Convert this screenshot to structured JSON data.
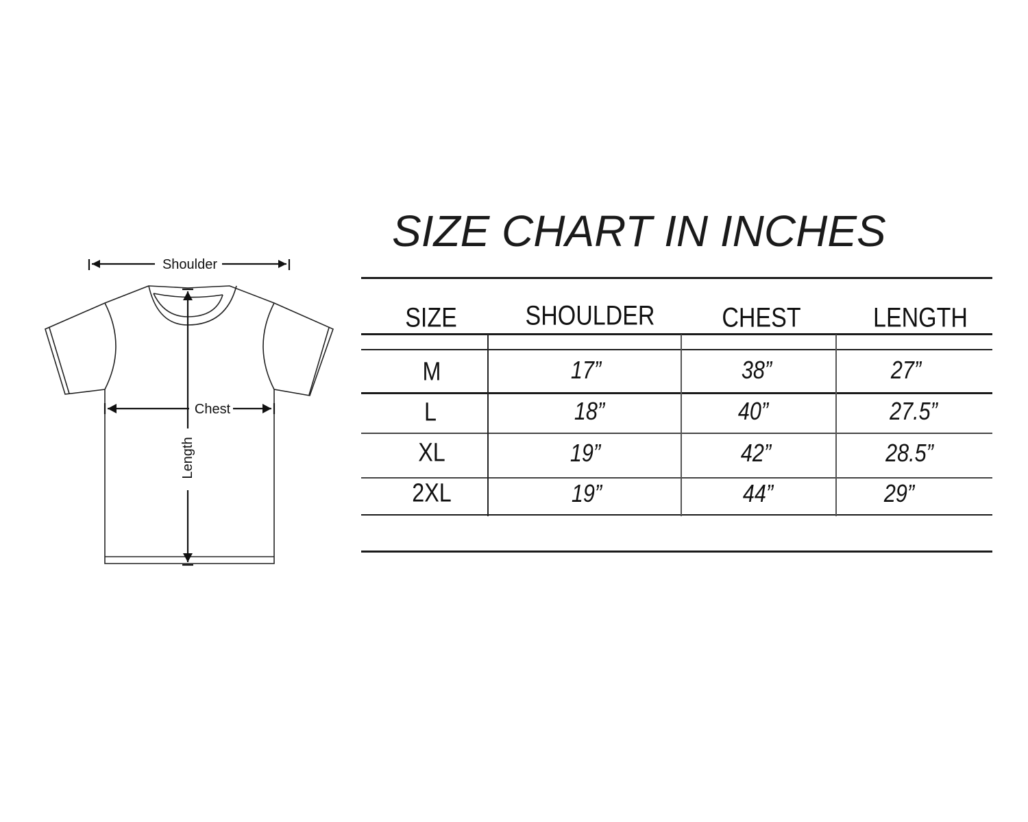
{
  "title": "SIZE CHART IN INCHES",
  "diagram": {
    "shoulder_label": "Shoulder",
    "chest_label": "Chest",
    "length_label": "Length"
  },
  "table": {
    "headers": [
      "SIZE",
      "SHOULDER",
      "CHEST",
      "LENGTH"
    ],
    "rows": [
      {
        "size": "M",
        "shoulder": "17”",
        "chest": "38”",
        "length": "27”"
      },
      {
        "size": "L",
        "shoulder": "18”",
        "chest": "40”",
        "length": "27.5”"
      },
      {
        "size": "XL",
        "shoulder": "19”",
        "chest": "42”",
        "length": "28.5”"
      },
      {
        "size": "2XL",
        "shoulder": "19”",
        "chest": "44”",
        "length": "29”"
      }
    ]
  }
}
